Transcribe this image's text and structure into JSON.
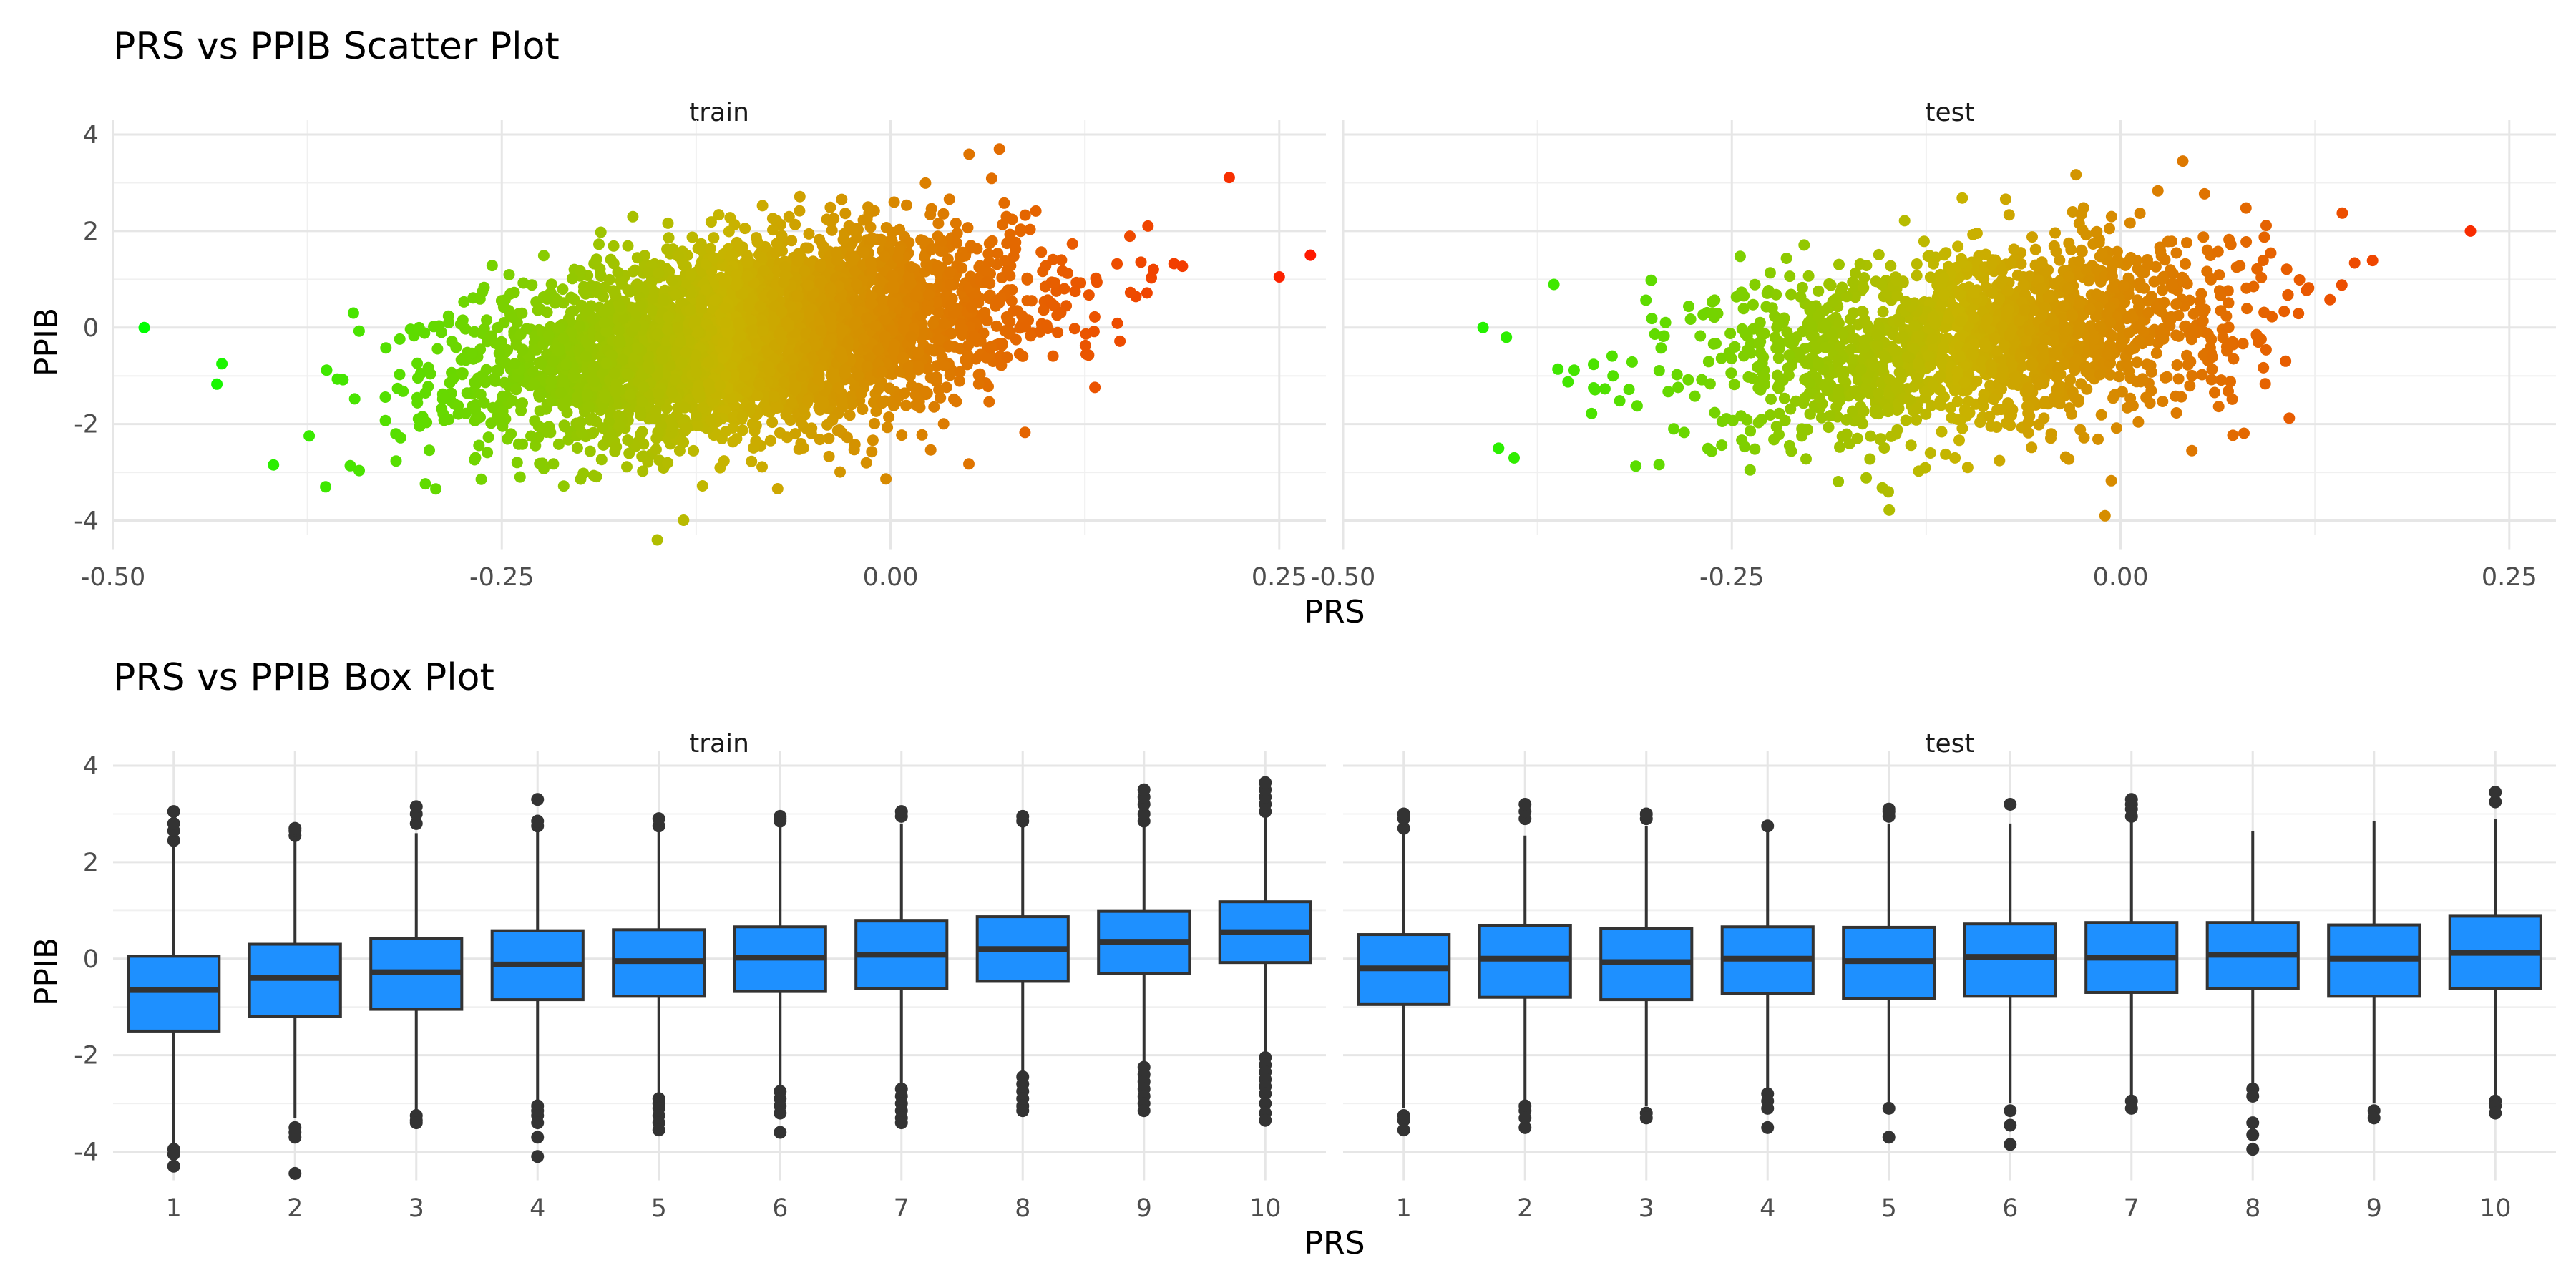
{
  "chart_data": [
    {
      "type": "scatter",
      "title": "PRS vs PPIB Scatter Plot",
      "xlabel": "PRS",
      "ylabel": "PPIB",
      "facets": [
        "train",
        "test"
      ],
      "xlim": [
        -0.5,
        0.28
      ],
      "ylim": [
        -4.6,
        4.0
      ],
      "xticks": [
        -0.5,
        -0.25,
        0.0,
        0.25
      ],
      "xtick_labels": [
        "-0.50",
        "-0.25",
        "0.00",
        "0.25"
      ],
      "yticks": [
        -4,
        -2,
        0,
        2,
        4
      ],
      "ytick_labels": [
        "-4",
        "-2",
        "0",
        "2",
        "4"
      ],
      "grid": true,
      "color_scale": {
        "low": "#00ff00",
        "mid": "#c8b400",
        "high": "#ff1a00",
        "mapped_to": "PRS"
      },
      "series": [
        {
          "name": "train",
          "n_points_approx": 16000,
          "prs_mean": -0.09,
          "prs_sd": 0.085,
          "ppib_mean": -0.2,
          "ppib_sd": 1.0,
          "correlation": 0.35,
          "notable_points": [
            {
              "x": -0.48,
              "y": 0.0
            },
            {
              "x": 0.27,
              "y": 1.5
            },
            {
              "x": 0.25,
              "y": 1.05
            },
            {
              "x": -0.43,
              "y": -0.75
            },
            {
              "x": -0.15,
              "y": -4.4
            },
            {
              "x": 0.07,
              "y": 3.7
            }
          ]
        },
        {
          "name": "test",
          "n_points_approx": 7000,
          "prs_mean": -0.09,
          "prs_sd": 0.085,
          "ppib_mean": -0.2,
          "ppib_sd": 1.0,
          "correlation": 0.3,
          "notable_points": [
            {
              "x": -0.41,
              "y": 0.0
            },
            {
              "x": -0.395,
              "y": -0.2
            },
            {
              "x": -0.4,
              "y": -2.5
            },
            {
              "x": -0.39,
              "y": -2.7
            },
            {
              "x": 0.225,
              "y": 2.0
            },
            {
              "x": 0.04,
              "y": 3.45
            },
            {
              "x": -0.01,
              "y": -3.9
            }
          ]
        }
      ]
    },
    {
      "type": "box",
      "title": "PRS vs PPIB Box Plot",
      "xlabel": "PRS",
      "ylabel": "PPIB",
      "facets": [
        "train",
        "test"
      ],
      "categories": [
        "1",
        "2",
        "3",
        "4",
        "5",
        "6",
        "7",
        "8",
        "9",
        "10"
      ],
      "ylim": [
        -4.6,
        4.0
      ],
      "yticks": [
        -4,
        -2,
        0,
        2,
        4
      ],
      "ytick_labels": [
        "-4",
        "-2",
        "0",
        "2",
        "4"
      ],
      "box_color": "#1e90ff",
      "grid": true,
      "series": [
        {
          "name": "train",
          "boxes": [
            {
              "q1": -1.5,
              "median": -0.65,
              "q3": 0.05,
              "whisker_low": -3.85,
              "whisker_high": 2.35,
              "outliers": [
                -3.95,
                -4.05,
                -4.3,
                2.45,
                2.65,
                2.8,
                3.05
              ]
            },
            {
              "q1": -1.2,
              "median": -0.4,
              "q3": 0.3,
              "whisker_low": -3.3,
              "whisker_high": 2.45,
              "outliers": [
                -3.5,
                -3.6,
                -3.7,
                -4.45,
                2.55,
                2.65,
                2.7
              ]
            },
            {
              "q1": -1.05,
              "median": -0.28,
              "q3": 0.42,
              "whisker_low": -3.15,
              "whisker_high": 2.6,
              "outliers": [
                -3.25,
                -3.35,
                -3.4,
                2.8,
                3.0,
                3.15
              ]
            },
            {
              "q1": -0.85,
              "median": -0.12,
              "q3": 0.58,
              "whisker_low": -2.95,
              "whisker_high": 2.7,
              "outliers": [
                -3.05,
                -3.15,
                -3.25,
                -3.4,
                -3.7,
                -4.1,
                2.75,
                2.85,
                3.3
              ]
            },
            {
              "q1": -0.78,
              "median": -0.05,
              "q3": 0.6,
              "whisker_low": -2.8,
              "whisker_high": 2.65,
              "outliers": [
                -2.9,
                -3.0,
                -3.1,
                -3.25,
                -3.4,
                -3.55,
                2.75,
                2.9
              ]
            },
            {
              "q1": -0.68,
              "median": 0.02,
              "q3": 0.66,
              "whisker_low": -2.65,
              "whisker_high": 2.75,
              "outliers": [
                -2.75,
                -2.9,
                -3.05,
                -3.2,
                -3.6,
                2.85,
                2.9,
                2.95
              ]
            },
            {
              "q1": -0.62,
              "median": 0.08,
              "q3": 0.78,
              "whisker_low": -2.6,
              "whisker_high": 2.8,
              "outliers": [
                -2.7,
                -2.85,
                -3.0,
                -3.15,
                -3.3,
                -3.4,
                2.95,
                3.05
              ]
            },
            {
              "q1": -0.47,
              "median": 0.2,
              "q3": 0.87,
              "whisker_low": -2.35,
              "whisker_high": 2.75,
              "outliers": [
                -2.45,
                -2.6,
                -2.75,
                -2.9,
                -3.05,
                -3.15,
                2.85,
                2.95
              ]
            },
            {
              "q1": -0.3,
              "median": 0.35,
              "q3": 0.98,
              "whisker_low": -2.15,
              "whisker_high": 2.75,
              "outliers": [
                -2.25,
                -2.4,
                -2.55,
                -2.7,
                -2.85,
                -3.0,
                -3.15,
                2.85,
                3.0,
                3.2,
                3.35,
                3.5
              ]
            },
            {
              "q1": -0.08,
              "median": 0.55,
              "q3": 1.18,
              "whisker_low": -1.95,
              "whisker_high": 2.95,
              "outliers": [
                -2.05,
                -2.2,
                -2.35,
                -2.5,
                -2.65,
                -2.8,
                -3.0,
                -3.2,
                -3.35,
                3.05,
                3.2,
                3.35,
                3.5,
                3.65
              ]
            }
          ]
        },
        {
          "name": "test",
          "boxes": [
            {
              "q1": -0.95,
              "median": -0.2,
              "q3": 0.5,
              "whisker_low": -3.1,
              "whisker_high": 2.6,
              "outliers": [
                -3.25,
                -3.35,
                -3.55,
                2.7,
                2.9,
                3.0
              ]
            },
            {
              "q1": -0.8,
              "median": 0.0,
              "q3": 0.68,
              "whisker_low": -2.95,
              "whisker_high": 2.55,
              "outliers": [
                -3.05,
                -3.15,
                -3.3,
                -3.5,
                2.9,
                3.05,
                3.2
              ]
            },
            {
              "q1": -0.85,
              "median": -0.07,
              "q3": 0.62,
              "whisker_low": -3.05,
              "whisker_high": 2.75,
              "outliers": [
                -3.2,
                -3.3,
                2.9,
                3.0
              ]
            },
            {
              "q1": -0.72,
              "median": 0.0,
              "q3": 0.66,
              "whisker_low": -2.7,
              "whisker_high": 2.65,
              "outliers": [
                -2.8,
                -2.95,
                -3.1,
                -3.5,
                2.75
              ]
            },
            {
              "q1": -0.82,
              "median": -0.05,
              "q3": 0.65,
              "whisker_low": -3.0,
              "whisker_high": 2.8,
              "outliers": [
                -3.1,
                -3.7,
                2.95,
                3.05,
                3.1
              ]
            },
            {
              "q1": -0.78,
              "median": 0.04,
              "q3": 0.72,
              "whisker_low": -3.0,
              "whisker_high": 2.8,
              "outliers": [
                -3.15,
                -3.45,
                -3.85,
                3.2
              ]
            },
            {
              "q1": -0.7,
              "median": 0.02,
              "q3": 0.75,
              "whisker_low": -2.85,
              "whisker_high": 2.85,
              "outliers": [
                -2.95,
                -3.1,
                2.95,
                3.1,
                3.2,
                3.3
              ]
            },
            {
              "q1": -0.62,
              "median": 0.08,
              "q3": 0.75,
              "whisker_low": -2.6,
              "whisker_high": 2.65,
              "outliers": [
                -2.7,
                -2.85,
                -3.4,
                -3.65,
                -3.95
              ]
            },
            {
              "q1": -0.78,
              "median": 0.0,
              "q3": 0.7,
              "whisker_low": -3.0,
              "whisker_high": 2.85,
              "outliers": [
                -3.15,
                -3.3
              ]
            },
            {
              "q1": -0.62,
              "median": 0.12,
              "q3": 0.88,
              "whisker_low": -2.85,
              "whisker_high": 2.9,
              "outliers": [
                -2.95,
                -3.05,
                -3.2,
                3.25,
                3.45
              ]
            }
          ]
        }
      ]
    }
  ]
}
